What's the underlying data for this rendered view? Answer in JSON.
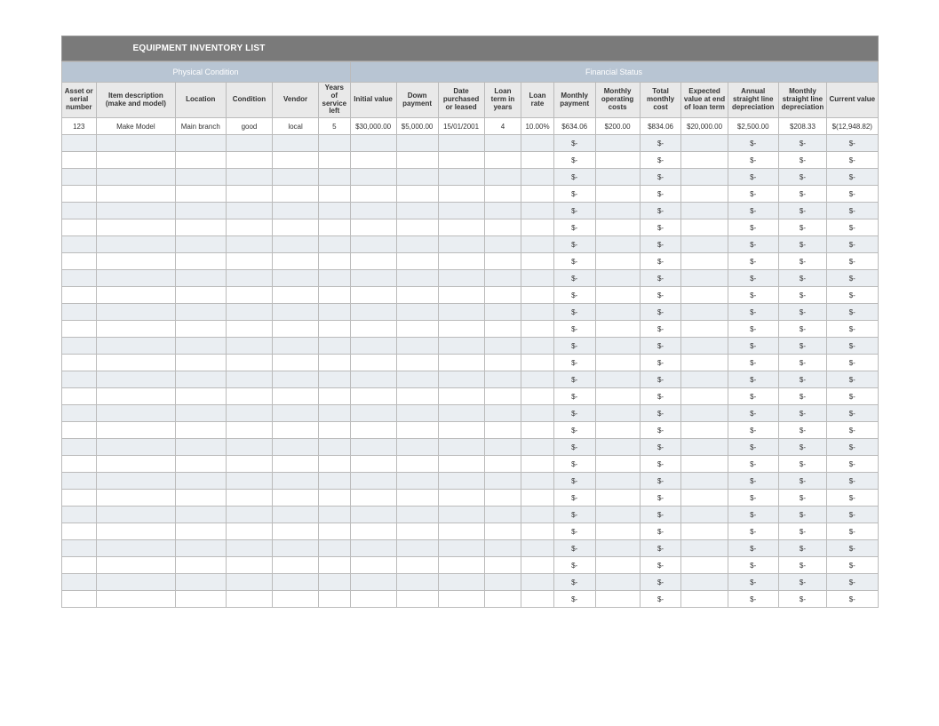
{
  "title": "EQUIPMENT INVENTORY LIST",
  "group_headers": {
    "physical": "Physical Condition",
    "financial": "Financial Status"
  },
  "columns": [
    "Asset or serial number",
    "Item description (make and model)",
    "Location",
    "Condition",
    "Vendor",
    "Years of service left",
    "Initial value",
    "Down payment",
    "Date purchased or leased",
    "Loan term in years",
    "Loan rate",
    "Monthly payment",
    "Monthly operating costs",
    "Total monthly cost",
    "Expected value at end of loan term",
    "Annual straight line depreciation",
    "Monthly straight line depreciation",
    "Current value"
  ],
  "data_row": [
    "123",
    "Make Model",
    "Main branch",
    "good",
    "local",
    "5",
    "$30,000.00",
    "$5,000.00",
    "15/01/2001",
    "4",
    "10.00%",
    "$634.06",
    "$200.00",
    "$834.06",
    "$20,000.00",
    "$2,500.00",
    "$208.33",
    "$(12,948.82)"
  ],
  "empty_template": [
    "",
    "",
    "",
    "",
    "",
    "",
    "",
    "",
    "",
    "",
    "",
    "$-",
    "",
    "$-",
    "",
    "$-",
    "$-",
    "$-"
  ],
  "empty_rows": 28,
  "colors": {
    "title_bg": "#7a7a7a",
    "title_fg": "#ffffff",
    "group_bg": "#b8c5d3",
    "group_fg": "#ffffff",
    "col_header_bg": "#e9e9e9",
    "row_alt_bg": "#eaeef2",
    "row_bg": "#ffffff",
    "border": "#bbbbbb"
  },
  "layout": {
    "physical_span": 6,
    "financial_span": 12,
    "font_family": "Arial",
    "header_font_size_pt": 8,
    "body_font_size_pt": 8,
    "title_font_size_pt": 10
  }
}
